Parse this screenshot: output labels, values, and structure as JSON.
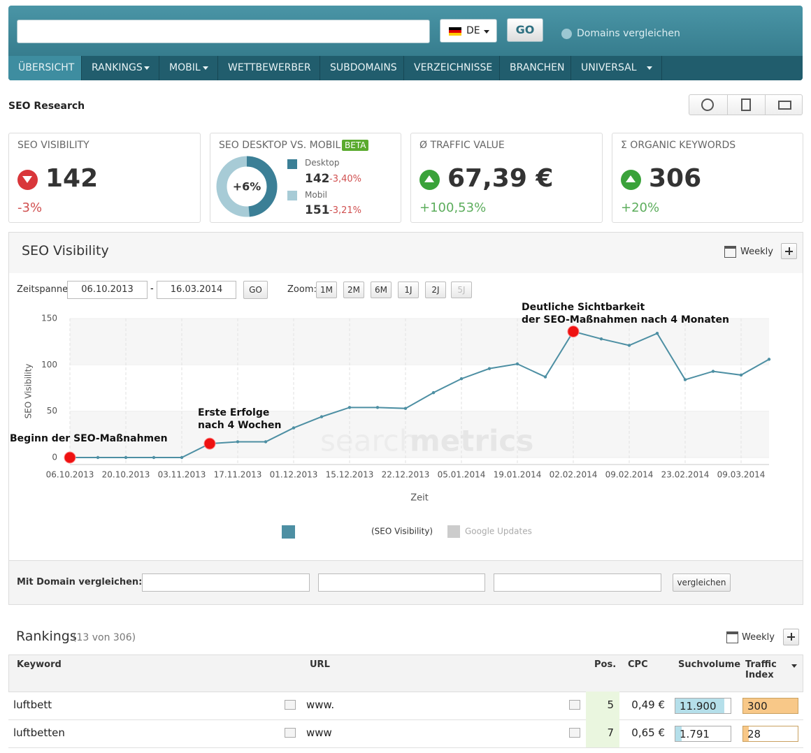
{
  "header": {
    "country": "DE",
    "go": "GO",
    "compare_link": "Domains vergleichen"
  },
  "nav": [
    "ÜBERSICHT",
    "RANKINGS",
    "MOBIL",
    "WETTBEWERBER",
    "SUBDOMAINS",
    "VERZEICHNISSE",
    "BRANCHEN",
    "UNIVERSAL"
  ],
  "page_title": "SEO Research",
  "cards": {
    "visibility": {
      "title": "SEO VISIBILITY",
      "value": "142",
      "change": "-3%"
    },
    "desktop_mobile": {
      "title": "SEO DESKTOP VS. MOBIL",
      "badge": "BETA",
      "center": "+6%",
      "desktop_label": "Desktop",
      "desktop_value": 142,
      "desktop_change": "-3,40%",
      "mobile_label": "Mobil",
      "mobile_value": 151,
      "mobile_change": "-3,21%"
    },
    "traffic": {
      "title": "Ø TRAFFIC VALUE",
      "value": "67,39 €",
      "change": "+100,53%"
    },
    "keywords": {
      "title": "Σ ORGANIC KEYWORDS",
      "value": "306",
      "change": "+20%"
    }
  },
  "panel": {
    "title": "SEO Visibility",
    "interval": "Weekly",
    "range_label": "Zeitspanne:",
    "from": "06.10.2013",
    "separator": "-",
    "to": "16.03.2014",
    "go": "GO",
    "zoom_label": "Zoom:",
    "zoom": [
      "1M",
      "2M",
      "6M",
      "1J",
      "2J",
      "5J"
    ],
    "compare_label": "Mit Domain vergleichen:",
    "compare_button": "vergleichen"
  },
  "chart_data": {
    "type": "line",
    "ylabel": "SEO Visibility",
    "xlabel": "Zeit",
    "categories": [
      "06.10.2013",
      null,
      "20.10.2013",
      null,
      "03.11.2013",
      null,
      "17.11.2013",
      null,
      "01.12.2013",
      null,
      "15.12.2013",
      null,
      "22.12.2013",
      null,
      "05.01.2014",
      null,
      "19.01.2014",
      null,
      "02.02.2014",
      null,
      "09.02.2014",
      null,
      "23.02.2014",
      null,
      "09.03.2014",
      null
    ],
    "series": [
      {
        "name": "(SEO Visibility)",
        "color": "#4d8fa3",
        "values": [
          0,
          0,
          0,
          0,
          0,
          15,
          17,
          17,
          32,
          44,
          54,
          54,
          53,
          70,
          85,
          96,
          101,
          87,
          136,
          128,
          121,
          134,
          84,
          93,
          89,
          106
        ]
      }
    ],
    "updates_legend": {
      "name": "Google Updates",
      "color": "#cccccc"
    },
    "ylim": [
      0,
      150
    ],
    "yticks": [
      0,
      50,
      100,
      150
    ],
    "grid": true,
    "annotations": [
      [
        "Beginn der SEO-Maßnahmen"
      ],
      [
        "Erste Erfolge",
        "nach 4 Wochen"
      ],
      [
        "Deutliche Sichtbarkeit",
        "der SEO-Maßnahmen nach 4 Monaten"
      ]
    ],
    "watermark": [
      "search",
      "metrics"
    ]
  },
  "rankings": {
    "title": "Rankings",
    "count": "(13 von 306)",
    "interval": "Weekly",
    "columns": [
      "Keyword",
      "URL",
      "Pos.",
      "CPC",
      "Suchvolume",
      "Traffic Index"
    ],
    "rows": [
      [
        "luftbett",
        "www.",
        "5",
        "0,49 €",
        "11.900",
        "300"
      ],
      [
        "luftbetten",
        "www",
        "7",
        "0,65 €",
        "1.791",
        "28"
      ]
    ]
  }
}
